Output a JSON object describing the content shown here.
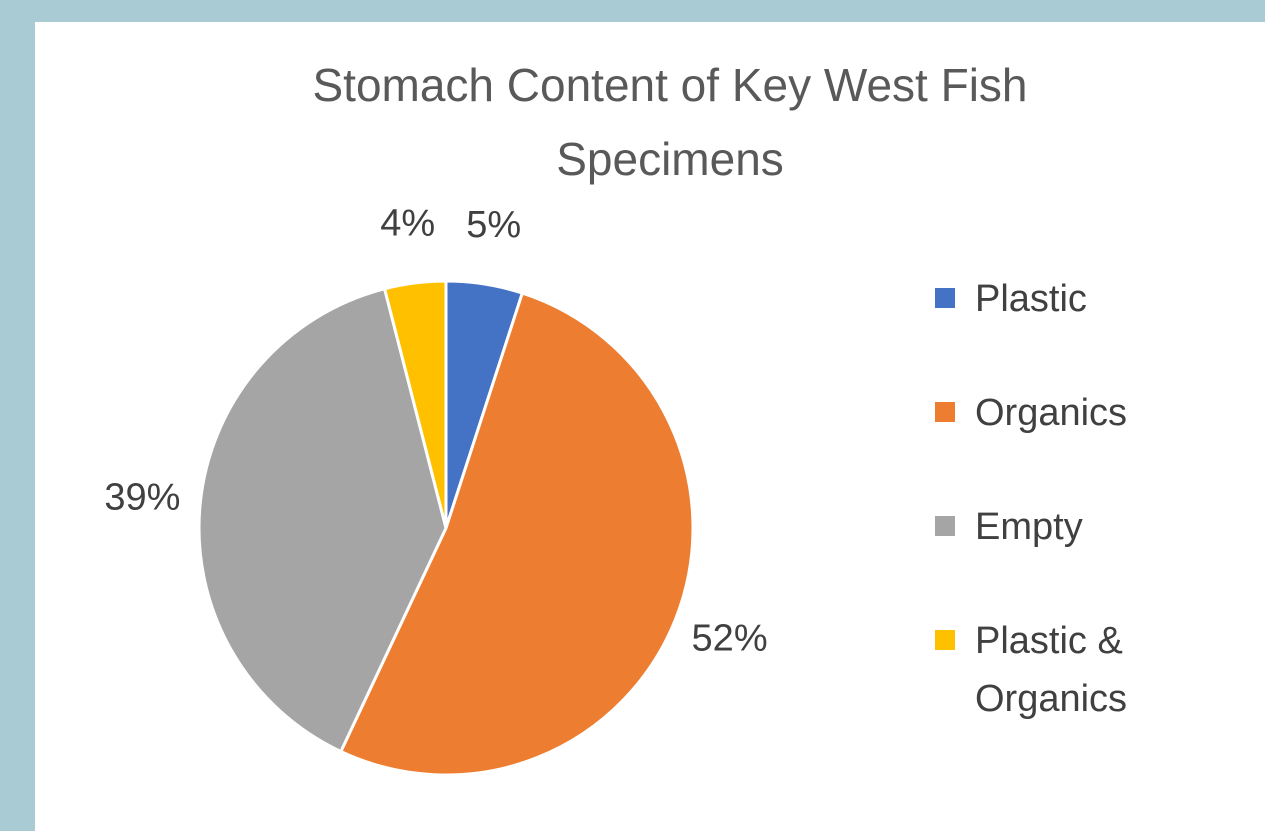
{
  "chart_data": {
    "type": "pie",
    "title": "Stomach Content of Key West Fish Specimens",
    "categories": [
      "Plastic",
      "Organics",
      "Empty",
      "Plastic & Organics"
    ],
    "values": [
      5,
      52,
      39,
      4
    ],
    "value_labels": [
      "5%",
      "52%",
      "39%",
      "4%"
    ],
    "colors": [
      "#4472c4",
      "#ed7d31",
      "#a5a5a5",
      "#ffc000"
    ],
    "legend": "right"
  }
}
